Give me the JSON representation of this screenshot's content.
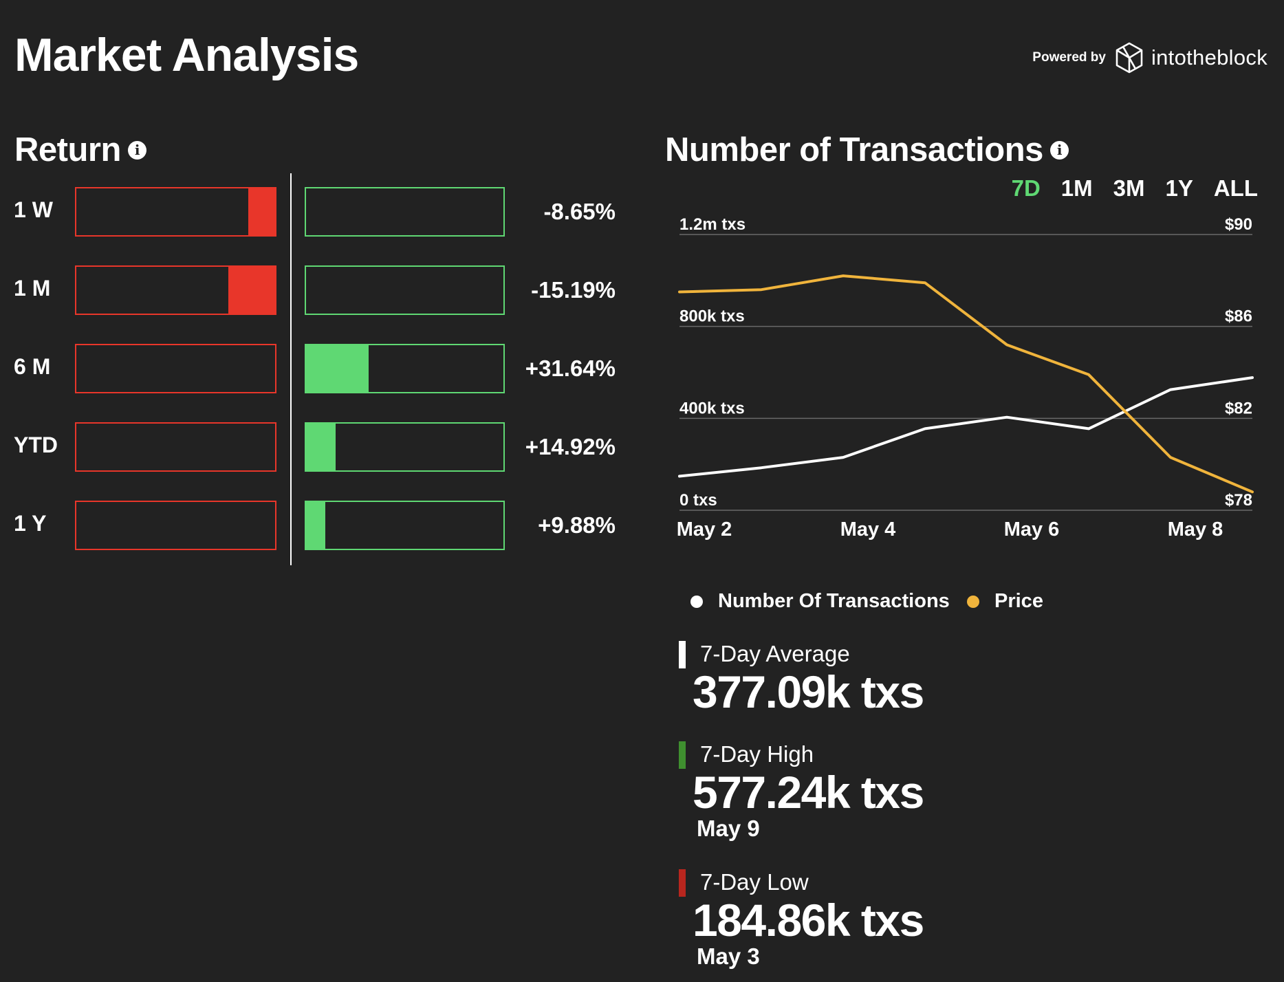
{
  "header": {
    "title": "Market Analysis",
    "powered_by": "Powered by",
    "brand": "intotheblock"
  },
  "returns": {
    "title": "Return",
    "rows": [
      {
        "label": "1 W",
        "value": "-8.65%",
        "neg_fill": 0.0865,
        "pos_fill": 0
      },
      {
        "label": "1 M",
        "value": "-15.19%",
        "neg_fill": 0.1519,
        "pos_fill": 0
      },
      {
        "label": "6 M",
        "value": "+31.64%",
        "neg_fill": 0,
        "pos_fill": 0.3164
      },
      {
        "label": "YTD",
        "value": "+14.92%",
        "neg_fill": 0,
        "pos_fill": 0.1492
      },
      {
        "label": "1 Y",
        "value": "+9.88%",
        "neg_fill": 0,
        "pos_fill": 0.0988
      }
    ],
    "colors": {
      "negative": "#e8362a",
      "positive": "#5fd873"
    }
  },
  "transactions": {
    "title": "Number of Transactions",
    "tabs": [
      "7D",
      "1M",
      "3M",
      "1Y",
      "ALL"
    ],
    "active_tab": "7D",
    "legend": [
      {
        "name": "Number Of Transactions",
        "color": "#ffffff"
      },
      {
        "name": "Price",
        "color": "#f0b43c"
      }
    ],
    "stats": [
      {
        "title": "7-Day Average",
        "value": "377.09k txs",
        "date": "",
        "color": "#ffffff"
      },
      {
        "title": "7-Day High",
        "value": "577.24k txs",
        "date": "May 9",
        "color": "#3f8f2f"
      },
      {
        "title": "7-Day Low",
        "value": "184.86k txs",
        "date": "May 3",
        "color": "#b8261e"
      }
    ]
  },
  "chart_data": {
    "type": "line",
    "title": "Number of Transactions",
    "x": [
      "May 2",
      "May 3",
      "May 4",
      "May 5",
      "May 6",
      "May 7",
      "May 8",
      "May 9"
    ],
    "xticks": [
      "May 2",
      "May 4",
      "May 6",
      "May 8"
    ],
    "left_axis": {
      "ticks": [
        0,
        400000,
        800000,
        1200000
      ],
      "labels": [
        "0 txs",
        "400k txs",
        "800k txs",
        "1.2m txs"
      ],
      "ylim": [
        0,
        1200000
      ]
    },
    "right_axis": {
      "ticks": [
        78,
        82,
        86,
        90
      ],
      "labels": [
        "$78",
        "$82",
        "$86",
        "$90"
      ],
      "ylim": [
        78,
        90
      ]
    },
    "series": [
      {
        "name": "Number Of Transactions",
        "axis": "left",
        "color": "#ffffff",
        "values": [
          148000,
          184860,
          230000,
          355000,
          405000,
          355000,
          525000,
          577240
        ]
      },
      {
        "name": "Price",
        "axis": "right",
        "color": "#f0b43c",
        "values": [
          87.5,
          87.6,
          88.2,
          87.9,
          85.2,
          83.9,
          80.3,
          78.8
        ]
      }
    ],
    "grid": true
  }
}
